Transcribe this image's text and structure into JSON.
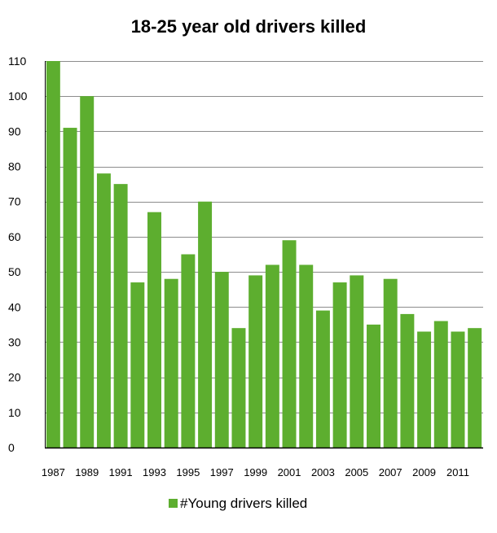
{
  "chart_data": {
    "type": "bar",
    "title": "18-25 year old drivers killed",
    "xlabel": "",
    "ylabel": "",
    "categories": [
      "1987",
      "1988",
      "1989",
      "1990",
      "1991",
      "1992",
      "1993",
      "1994",
      "1995",
      "1996",
      "1997",
      "1998",
      "1999",
      "2000",
      "2001",
      "2002",
      "2003",
      "2004",
      "2005",
      "2006",
      "2007",
      "2008",
      "2009",
      "2010",
      "2011",
      "2012"
    ],
    "x_tick_labels": [
      "1987",
      "1989",
      "1991",
      "1993",
      "1995",
      "1997",
      "1999",
      "2001",
      "2003",
      "2005",
      "2007",
      "2009",
      "2011"
    ],
    "series": [
      {
        "name": "#Young drivers killed",
        "color": "#5DAE2F",
        "values": [
          110,
          91,
          100,
          78,
          75,
          47,
          67,
          48,
          55,
          70,
          50,
          34,
          49,
          52,
          59,
          52,
          39,
          47,
          49,
          35,
          48,
          38,
          33,
          36,
          33,
          34
        ]
      }
    ],
    "ylim": [
      0,
      110
    ],
    "yticks": [
      0,
      10,
      20,
      30,
      40,
      50,
      60,
      70,
      80,
      90,
      100,
      110
    ],
    "grid": true,
    "legend": "bottom"
  }
}
